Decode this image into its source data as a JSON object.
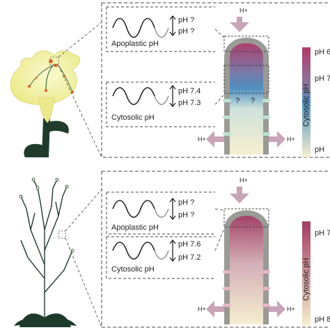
{
  "top_panel": {
    "proton_in": "H+",
    "proton_out_left": "H+",
    "proton_out_right": "H+",
    "apoplastic": {
      "caption": "Apoplastic pH",
      "ph_high": "pH ?",
      "ph_low": "pH ?"
    },
    "cytosolic": {
      "caption": "Cytosolic pH",
      "ph_high": "pH 7.4",
      "ph_low": "pH 7.3"
    },
    "unknown_marks": [
      "?",
      "?"
    ],
    "scale": {
      "axis_label": "Cytosolic pH",
      "top": "pH 6",
      "mid": "pH 7",
      "bottom": "pH"
    },
    "colors": {
      "tube_top": "#b03a6a",
      "tube_mid": "#4f8fc0",
      "tube_bottom": "#f6efd0",
      "flower": "#f4f2a4"
    }
  },
  "bottom_panel": {
    "proton_in": "H+",
    "proton_out_left": "H+",
    "proton_out_right": "H+",
    "apoplastic": {
      "caption": "Apoplastic pH",
      "ph_high": "pH ?",
      "ph_low": "pH ?"
    },
    "cytosolic": {
      "caption": "Cytosolic pH",
      "ph_high": "pH 7.6",
      "ph_low": "pH 7.2"
    },
    "scale": {
      "axis_label": "Cytosolic pH",
      "top": "pH 7",
      "bottom": "pH 8"
    },
    "colors": {
      "tube_top": "#a03c62",
      "tube_bottom": "#f6efd0",
      "plant": "#1e3a2a"
    }
  }
}
